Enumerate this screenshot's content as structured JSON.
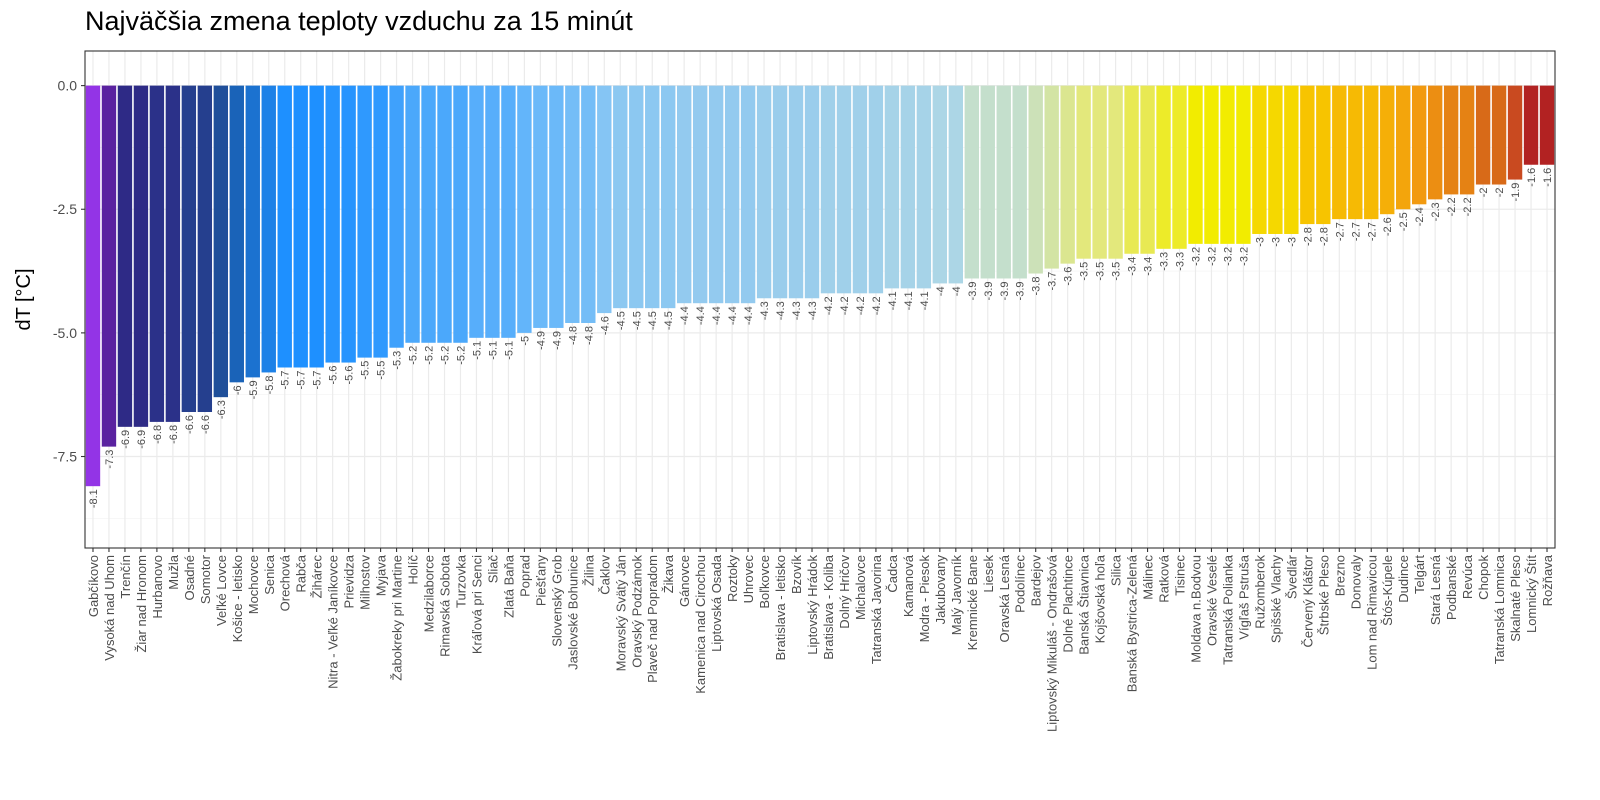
{
  "chart_data": {
    "type": "bar",
    "title": "Najväčšia zmena teploty vzduchu za 15 minút",
    "xlabel": "",
    "ylabel": "dT [°C]",
    "ylim": [
      -9.35,
      0.7
    ],
    "yticks": [
      0.0,
      -2.5,
      -5.0,
      -7.5
    ],
    "ytick_labels": [
      "0.0",
      "-2.5",
      "-5.0",
      "-7.5"
    ],
    "categories": [
      "Gabčíkovo",
      "Vysoká nad Uhom",
      "Trenčín",
      "Žiar nad Hronom",
      "Hurbanovo",
      "Mužla",
      "Osadné",
      "Somotor",
      "Veľké Lovce",
      "Košice - letisko",
      "Mochovce",
      "Senica",
      "Orechová",
      "Rabča",
      "Žihárec",
      "Nitra - Veľké Janíkovce",
      "Prievidza",
      "Milhostov",
      "Myjava",
      "Žabokreky pri Martine",
      "Holíč",
      "Medzilaborce",
      "Rimavská Sobota",
      "Turzovka",
      "Kráľová pri Senci",
      "Sliač",
      "Zlatá Baňa",
      "Poprad",
      "Piešťany",
      "Slovenský Grob",
      "Jaslovské Bohunice",
      "Žilina",
      "Čaklov",
      "Moravský Svätý Ján",
      "Oravský Podzámok",
      "Plaveč nad Popradom",
      "Žikava",
      "Gánovce",
      "Kamenica nad Cirochou",
      "Liptovská Osada",
      "Roztoky",
      "Uhrovec",
      "Boľkovce",
      "Bratislava - letisko",
      "Bzovík",
      "Liptovský Hrádok",
      "Bratislava - Koliba",
      "Dolný Hričov",
      "Michalovce",
      "Tatranská Javorina",
      "Čadca",
      "Kamanová",
      "Modra - Piesok",
      "Jakubovany",
      "Malý Javorník",
      "Kremnické Bane",
      "Liesek",
      "Oravská Lesná",
      "Podolínec",
      "Bardejov",
      "Liptovský Mikuláš - Ondrašová",
      "Dolné Plachtince",
      "Banská Štiavnica",
      "Kojšovská hoľa",
      "Silica",
      "Banská Bystrica-Zelená",
      "Málinec",
      "Ratková",
      "Tisinec",
      "Moldava n.Bodvou",
      "Oravské Veselé",
      "Tatranská Polianka",
      "Vígľaš Pstruša",
      "Ružomberok",
      "Spišské Vlachy",
      "Švedlár",
      "Červený Kláštor",
      "Štrbské Pleso",
      "Brezno",
      "Donovaly",
      "Lom nad Rimavicou",
      "Štós-Kúpele",
      "Dudince",
      "Telgárt",
      "Stará Lesná",
      "Podbanské",
      "Revúca",
      "Chopok",
      "Tatranská Lomnica",
      "Skalnaté Pleso",
      "Lomnický Štít",
      "Rožňava"
    ],
    "values": [
      -8.1,
      -7.3,
      -6.9,
      -6.9,
      -6.8,
      -6.8,
      -6.6,
      -6.6,
      -6.3,
      -6,
      -5.9,
      -5.8,
      -5.7,
      -5.7,
      -5.7,
      -5.6,
      -5.6,
      -5.5,
      -5.5,
      -5.3,
      -5.2,
      -5.2,
      -5.2,
      -5.2,
      -5.1,
      -5.1,
      -5.1,
      -5,
      -4.9,
      -4.9,
      -4.8,
      -4.8,
      -4.6,
      -4.5,
      -4.5,
      -4.5,
      -4.5,
      -4.4,
      -4.4,
      -4.4,
      -4.4,
      -4.4,
      -4.3,
      -4.3,
      -4.3,
      -4.3,
      -4.2,
      -4.2,
      -4.2,
      -4.2,
      -4.1,
      -4.1,
      -4.1,
      -4,
      -4,
      -3.9,
      -3.9,
      -3.9,
      -3.9,
      -3.8,
      -3.7,
      -3.6,
      -3.5,
      -3.5,
      -3.5,
      -3.4,
      -3.4,
      -3.3,
      -3.3,
      -3.2,
      -3.2,
      -3.2,
      -3.2,
      -3,
      -3,
      -3,
      -2.8,
      -2.8,
      -2.7,
      -2.7,
      -2.7,
      -2.6,
      -2.5,
      -2.4,
      -2.3,
      -2.2,
      -2.2,
      -2,
      -2,
      -1.9,
      -1.6,
      -1.6
    ],
    "data_labels": [
      "-8.1",
      "-7.3",
      "-6.9",
      "-6.9",
      "-6.8",
      "-6.8",
      "-6.6",
      "-6.6",
      "-6.3",
      "-6",
      "-5.9",
      "-5.8",
      "-5.7",
      "-5.7",
      "-5.7",
      "-5.6",
      "-5.6",
      "-5.5",
      "-5.5",
      "-5.3",
      "-5.2",
      "-5.2",
      "-5.2",
      "-5.2",
      "-5.1",
      "-5.1",
      "-5.1",
      "-5",
      "-4.9",
      "-4.9",
      "-4.8",
      "-4.8",
      "-4.6",
      "-4.5",
      "-4.5",
      "-4.5",
      "-4.5",
      "-4.4",
      "-4.4",
      "-4.4",
      "-4.4",
      "-4.4",
      "-4.3",
      "-4.3",
      "-4.3",
      "-4.3",
      "-4.2",
      "-4.2",
      "-4.2",
      "-4.2",
      "-4.1",
      "-4.1",
      "-4.1",
      "-4",
      "-4",
      "-3.9",
      "-3.9",
      "-3.9",
      "-3.9",
      "-3.8",
      "-3.7",
      "-3.6",
      "-3.5",
      "-3.5",
      "-3.5",
      "-3.4",
      "-3.4",
      "-3.3",
      "-3.3",
      "-3.2",
      "-3.2",
      "-3.2",
      "-3.2",
      "-3",
      "-3",
      "-3",
      "-2.8",
      "-2.8",
      "-2.7",
      "-2.7",
      "-2.7",
      "-2.6",
      "-2.5",
      "-2.4",
      "-2.3",
      "-2.2",
      "-2.2",
      "-2",
      "-2",
      "-1.9",
      "-1.6",
      "-1.6"
    ],
    "color_scale": [
      {
        "v": -8.1,
        "c": "#9334e6"
      },
      {
        "v": -7.3,
        "c": "#5a22a0"
      },
      {
        "v": -6.9,
        "c": "#2e2a86"
      },
      {
        "v": -6.6,
        "c": "#253f8e"
      },
      {
        "v": -6.3,
        "c": "#1f4f9a"
      },
      {
        "v": -6.0,
        "c": "#1a63b8"
      },
      {
        "v": -5.7,
        "c": "#1e90ff"
      },
      {
        "v": -5.3,
        "c": "#3fa1fc"
      },
      {
        "v": -5.0,
        "c": "#63b5fa"
      },
      {
        "v": -4.6,
        "c": "#85c5f4"
      },
      {
        "v": -4.3,
        "c": "#9acdec"
      },
      {
        "v": -4.0,
        "c": "#acd6e6"
      },
      {
        "v": -3.9,
        "c": "#c4dfcc"
      },
      {
        "v": -3.5,
        "c": "#e3e87c"
      },
      {
        "v": -3.2,
        "c": "#f2ec00"
      },
      {
        "v": -2.8,
        "c": "#f7c400"
      },
      {
        "v": -2.4,
        "c": "#f29a10"
      },
      {
        "v": -2.0,
        "c": "#d86a18"
      },
      {
        "v": -1.9,
        "c": "#c94a20"
      },
      {
        "v": -1.6,
        "c": "#b22222"
      }
    ]
  }
}
